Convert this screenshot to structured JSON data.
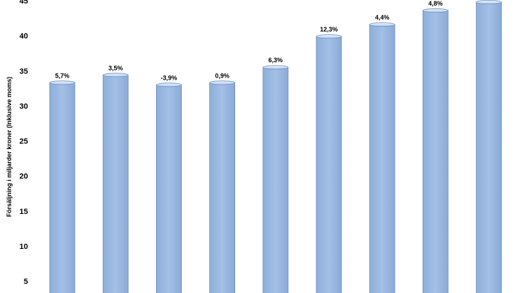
{
  "chart_data": {
    "type": "bar",
    "categories": [
      "",
      "",
      "",
      "",
      "",
      "",
      "",
      "",
      ""
    ],
    "values": [
      33.3,
      34.4,
      33.0,
      33.3,
      35.5,
      39.9,
      41.6,
      43.6,
      44.8
    ],
    "data_labels": [
      "5,7%",
      "3,5%",
      "-3,9%",
      "0,9%",
      "6,3%",
      "12,3%",
      "4,4%",
      "4,8%",
      ""
    ],
    "ylabel": "Försäljning i miljarder kroner (Inklusive moms)",
    "yticks": [
      "5",
      "10",
      "15",
      "20",
      "25",
      "30",
      "35",
      "40",
      "45"
    ],
    "ylim": [
      3,
      45
    ],
    "bar_color": "#9dbbe2",
    "bar_edge_color": "#6a8fc0",
    "grid": false
  }
}
